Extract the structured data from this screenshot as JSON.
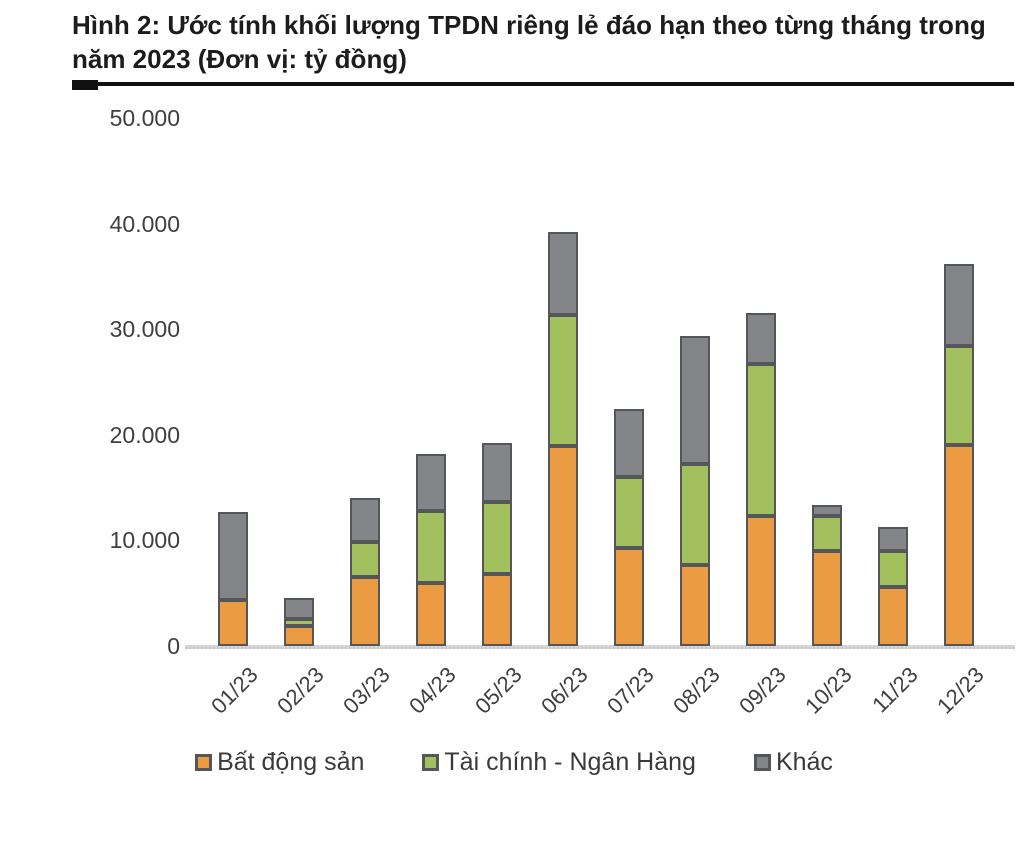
{
  "title": "Hình 2: Ước tính khối lượng TPDN riêng lẻ đáo hạn theo từng tháng trong năm 2023 (Đơn vị: tỷ đồng)",
  "colors": {
    "real_estate": "#EB9C42",
    "finance_banking": "#A2C05E",
    "other": "#838589",
    "segment_border": "#55565A",
    "axis_line": "#D6D6D6",
    "text": "#3F3F3F",
    "title_text": "#1C1C1C",
    "title_rule": "#111111"
  },
  "chart_data": {
    "type": "bar",
    "stacked": true,
    "title": "Hình 2: Ước tính khối lượng TPDN riêng lẻ đáo hạn theo từng tháng trong năm 2023",
    "unit_label": "Đơn vị: tỷ đồng",
    "xlabel": "",
    "ylabel": "",
    "grid": false,
    "legend_position": "bottom",
    "ylim": [
      0,
      50000
    ],
    "yticks": [
      {
        "value": 0,
        "label": "0"
      },
      {
        "value": 10000,
        "label": "10.000"
      },
      {
        "value": 20000,
        "label": "20.000"
      },
      {
        "value": 30000,
        "label": "30.000"
      },
      {
        "value": 40000,
        "label": "40.000"
      },
      {
        "value": 50000,
        "label": "50.000"
      }
    ],
    "categories": [
      "01/23",
      "02/23",
      "03/23",
      "04/23",
      "05/23",
      "06/23",
      "07/23",
      "08/23",
      "09/23",
      "10/23",
      "11/23",
      "12/23"
    ],
    "series": [
      {
        "name": "Bất động sản",
        "color": "#EB9C42",
        "values": [
          4400,
          1900,
          6500,
          6000,
          6800,
          18900,
          9300,
          7700,
          12300,
          9000,
          5600,
          19000
        ]
      },
      {
        "name": "Tài chính - Ngân Hàng",
        "color": "#A2C05E",
        "values": [
          0,
          700,
          3300,
          6800,
          6800,
          12400,
          6700,
          9600,
          14400,
          3300,
          3400,
          9400
        ]
      },
      {
        "name": "Khác",
        "color": "#838589",
        "values": [
          8300,
          2000,
          4200,
          5400,
          5600,
          7900,
          6400,
          12100,
          4800,
          1000,
          2300,
          7800
        ]
      }
    ],
    "totals": [
      12700,
      4600,
      14000,
      18200,
      19200,
      39200,
      22400,
      29400,
      31500,
      13300,
      11300,
      36200
    ]
  }
}
